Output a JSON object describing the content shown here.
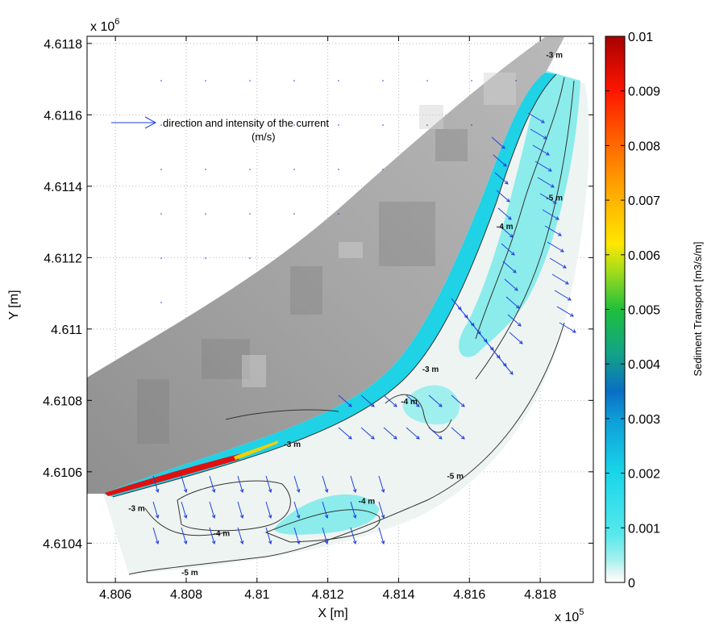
{
  "chart_data": {
    "type": "heatmap",
    "title": "",
    "xlabel": "X [m]",
    "ylabel": "Y [m]",
    "x_exponent": "x 10",
    "x_exponent_power": "5",
    "y_exponent": "x 10",
    "y_exponent_power": "6",
    "xlim": [
      480520,
      481950
    ],
    "ylim": [
      4610290,
      4611820
    ],
    "x_ticks": [
      480600,
      480800,
      481000,
      481200,
      481400,
      481600,
      481800
    ],
    "x_tick_labels": [
      "4.806",
      "4.808",
      "4.81",
      "4.812",
      "4.814",
      "4.816",
      "4.818"
    ],
    "y_ticks": [
      4610400,
      4610600,
      4610800,
      4611000,
      4611200,
      4611400,
      4611600,
      4611800
    ],
    "y_tick_labels": [
      "4.6104",
      "4.6106",
      "4.6108",
      "4.611",
      "4.6112",
      "4.6114",
      "4.6116",
      "4.6118"
    ],
    "grid": true,
    "colorbar": {
      "label": "Sediment Transport [m3/s/m]",
      "min": 0,
      "max": 0.01,
      "ticks": [
        0,
        0.001,
        0.002,
        0.003,
        0.004,
        0.005,
        0.006,
        0.007,
        0.008,
        0.009,
        0.01
      ],
      "tick_labels": [
        "0",
        "0.001",
        "0.002",
        "0.003",
        "0.004",
        "0.005",
        "0.006",
        "0.007",
        "0.008",
        "0.009",
        "0.01"
      ],
      "colormap": "jet"
    },
    "legend": {
      "text_line1": "direction and intensity of the current",
      "text_line2": "(m/s)",
      "arrow_color": "#1f3fe0"
    },
    "depth_contours": [
      {
        "label": "-3 m",
        "x": 481840,
        "y": 4611760
      },
      {
        "label": "-5 m",
        "x": 481840,
        "y": 4611360
      },
      {
        "label": "-4 m",
        "x": 481700,
        "y": 4611280
      },
      {
        "label": "-3 m",
        "x": 481490,
        "y": 4610880
      },
      {
        "label": "-4 m",
        "x": 481430,
        "y": 4610790
      },
      {
        "label": "-3 m",
        "x": 481100,
        "y": 4610670
      },
      {
        "label": "-5 m",
        "x": 481560,
        "y": 4610580
      },
      {
        "label": "-4 m",
        "x": 481310,
        "y": 4610510
      },
      {
        "label": "-3 m",
        "x": 480660,
        "y": 4610490
      },
      {
        "label": "-4 m",
        "x": 480900,
        "y": 4610420
      },
      {
        "label": "-5 m",
        "x": 480810,
        "y": 4610310
      }
    ],
    "colors": {
      "land": "#9a9a9a",
      "sea_background": "#eef4f2",
      "low_transport": "#86ecec",
      "medium_transport": "#22d4e6",
      "high_transport": "#e60000",
      "contour": "#333333",
      "current_arrows": "#1f3fe0"
    }
  }
}
